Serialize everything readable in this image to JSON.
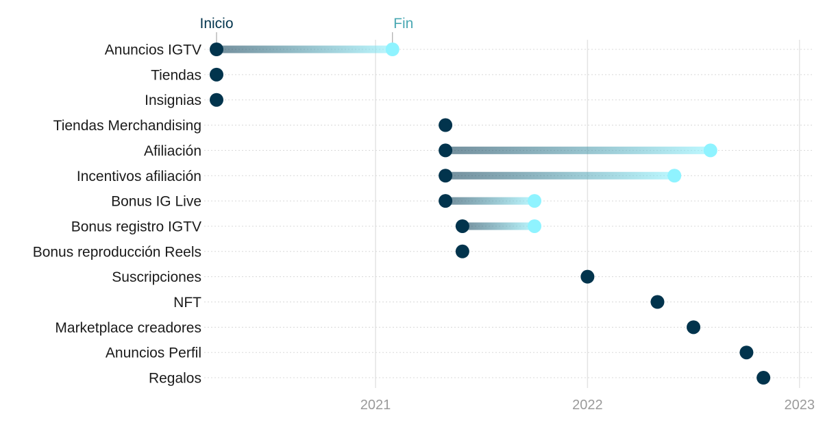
{
  "chart_data": {
    "type": "dumbbell",
    "title": "",
    "xlabel": "",
    "ylabel": "",
    "x_axis": {
      "scale": "time",
      "range": [
        2020.25,
        2023.03
      ],
      "ticks": [
        {
          "value": 2021,
          "label": "2021"
        },
        {
          "value": 2022,
          "label": "2022"
        },
        {
          "value": 2023,
          "label": "2023"
        }
      ]
    },
    "legend": {
      "placement": "top",
      "start_label": "Inicio",
      "end_label": "Fin"
    },
    "colors": {
      "start": "#02344d",
      "end": "#8ff3ff",
      "vgrid": "#e4e4e4",
      "hgrid": "#d8d8d8"
    },
    "grid": {
      "vertical": true,
      "horizontal_dotted": true
    },
    "rows": [
      {
        "label": "Anuncios IGTV",
        "start": 2020.25,
        "end": 2021.08
      },
      {
        "label": "Tiendas",
        "start": 2020.25,
        "end": null
      },
      {
        "label": "Insignias",
        "start": 2020.25,
        "end": null
      },
      {
        "label": "Tiendas Merchandising",
        "start": 2021.33,
        "end": null
      },
      {
        "label": "Afiliación",
        "start": 2021.33,
        "end": 2022.58
      },
      {
        "label": "Incentivos afiliación",
        "start": 2021.33,
        "end": 2022.41
      },
      {
        "label": "Bonus IG Live",
        "start": 2021.33,
        "end": 2021.75
      },
      {
        "label": "Bonus registro IGTV",
        "start": 2021.41,
        "end": 2021.75
      },
      {
        "label": "Bonus reproducción Reels",
        "start": 2021.41,
        "end": null
      },
      {
        "label": "Suscripciones",
        "start": 2022.0,
        "end": null
      },
      {
        "label": "NFT",
        "start": 2022.33,
        "end": null
      },
      {
        "label": "Marketplace creadores",
        "start": 2022.5,
        "end": null
      },
      {
        "label": "Anuncios Perfil",
        "start": 2022.75,
        "end": null
      },
      {
        "label": "Regalos",
        "start": 2022.83,
        "end": null
      }
    ]
  }
}
